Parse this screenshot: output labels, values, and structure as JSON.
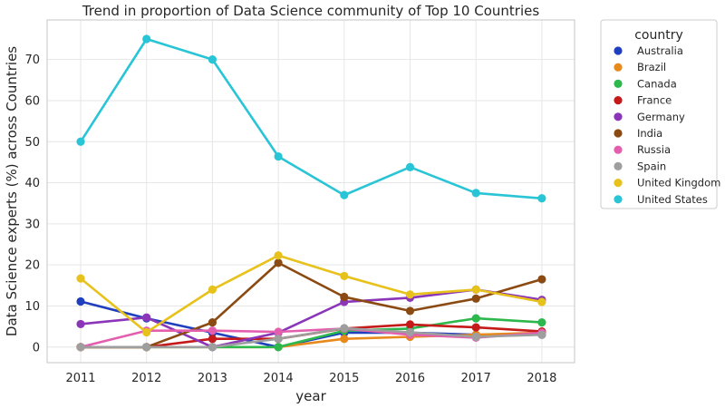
{
  "chart_data": {
    "type": "line",
    "title": "Trend in proportion of Data Science community of Top 10 Countries",
    "xlabel": "year",
    "ylabel": "Data Science experts (%) across Countries",
    "x": [
      "2011",
      "2012",
      "2013",
      "2014",
      "2015",
      "2016",
      "2017",
      "2018"
    ],
    "yticks": [
      0,
      10,
      20,
      30,
      40,
      50,
      60,
      70
    ],
    "ylim": [
      -4,
      79
    ],
    "grid": true,
    "legend": {
      "title": "country",
      "placement": "outside-top-right"
    },
    "series": [
      {
        "name": "Australia",
        "color": "#1f3fbf",
        "values": [
          11.1,
          7.0,
          3.5,
          0.0,
          3.5,
          3.5,
          3.0,
          3.0
        ]
      },
      {
        "name": "Brazil",
        "color": "#e8891c",
        "values": [
          0.0,
          0.0,
          0.0,
          0.0,
          2.0,
          2.5,
          3.0,
          3.5
        ]
      },
      {
        "name": "Canada",
        "color": "#2db84d",
        "values": [
          0.0,
          0.0,
          0.0,
          0.0,
          4.0,
          4.5,
          7.0,
          6.0
        ]
      },
      {
        "name": "France",
        "color": "#c41a1a",
        "values": [
          0.0,
          0.0,
          2.0,
          2.0,
          4.5,
          5.5,
          4.8,
          3.8
        ]
      },
      {
        "name": "Germany",
        "color": "#8b35b8",
        "values": [
          5.6,
          7.2,
          0.0,
          3.5,
          11.0,
          12.0,
          14.0,
          11.5
        ]
      },
      {
        "name": "India",
        "color": "#8b4a12",
        "values": [
          0.0,
          0.0,
          6.0,
          20.5,
          12.2,
          8.8,
          11.8,
          16.5
        ]
      },
      {
        "name": "Russia",
        "color": "#e35fae",
        "values": [
          0.0,
          4.0,
          4.0,
          3.7,
          4.5,
          3.0,
          2.3,
          3.5
        ]
      },
      {
        "name": "Spain",
        "color": "#9e9e9e",
        "values": [
          0.0,
          0.0,
          0.0,
          2.0,
          4.6,
          3.6,
          2.5,
          3.0
        ]
      },
      {
        "name": "United Kingdom",
        "color": "#e8c21c",
        "values": [
          16.7,
          3.6,
          14.0,
          22.3,
          17.3,
          12.8,
          14.0,
          11.0
        ]
      },
      {
        "name": "United States",
        "color": "#29c5d6",
        "values": [
          50.0,
          75.0,
          70.0,
          46.4,
          37.0,
          43.8,
          37.5,
          36.2
        ]
      }
    ]
  }
}
